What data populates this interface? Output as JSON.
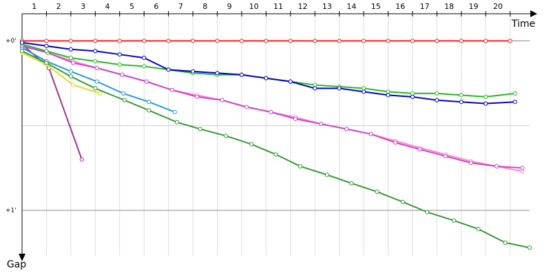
{
  "chart_data": {
    "type": "line",
    "x_label": "Time",
    "y_label": "Gap",
    "xlim": [
      0,
      20.8
    ],
    "xticks": [
      1,
      2,
      3,
      4,
      5,
      6,
      7,
      8,
      9,
      10,
      11,
      12,
      13,
      14,
      15,
      16,
      17,
      18,
      19,
      20
    ],
    "ylim": [
      -0.16,
      1.3
    ],
    "yticks": [
      {
        "value": 0,
        "label": "+0'"
      },
      {
        "value": 1,
        "label": "+1'"
      }
    ],
    "minor_yticks": [
      0.5
    ],
    "grid": true,
    "series": [
      {
        "color": "#ee2222",
        "x": [
          0,
          1,
          2,
          3,
          4,
          5,
          6,
          7,
          8,
          9,
          10,
          11,
          12,
          13,
          14,
          15,
          16,
          17,
          18,
          19,
          20
        ],
        "values": [
          0,
          0,
          0,
          0,
          0,
          0,
          0,
          0,
          0,
          0,
          0,
          0,
          0,
          0,
          0,
          0,
          0,
          0,
          0,
          0,
          0
        ]
      },
      {
        "color": "#993399",
        "x": [
          0,
          1.1,
          2.45
        ],
        "values": [
          0.02,
          0.16,
          0.7
        ]
      },
      {
        "color": "#dddd22",
        "x": [
          0,
          1,
          2.1,
          3.2
        ],
        "values": [
          0.07,
          0.14,
          0.26,
          0.31
        ]
      },
      {
        "color": "#2299dd",
        "x": [
          0,
          1,
          2,
          3.07,
          4.15,
          5.2,
          6.26
        ],
        "values": [
          0.04,
          0.12,
          0.18,
          0.24,
          0.31,
          0.36,
          0.42
        ]
      },
      {
        "color": "#339933",
        "x": [
          0,
          1,
          2,
          3,
          4.2,
          5.2,
          6.35,
          7.3,
          8.35,
          9.4,
          10.4,
          11.4,
          12.5,
          13.5,
          14.55,
          15.6,
          16.6,
          17.7,
          18.7,
          19.8,
          20.8
        ],
        "values": [
          0.06,
          0.13,
          0.21,
          0.28,
          0.35,
          0.41,
          0.48,
          0.52,
          0.56,
          0.61,
          0.67,
          0.74,
          0.79,
          0.84,
          0.89,
          0.95,
          1.01,
          1.06,
          1.11,
          1.19,
          1.22
        ]
      },
      {
        "color": "#ff88cc",
        "x": [
          0,
          1.05,
          2.1,
          3.07,
          4.1,
          5.1,
          6.15,
          7.17,
          8.2,
          9.2,
          10.2,
          11.2,
          12.25,
          13.3,
          14.3,
          15.3,
          16.3,
          17.35,
          18.4,
          19.45,
          20.5
        ],
        "values": [
          0.03,
          0.07,
          0.12,
          0.16,
          0.2,
          0.24,
          0.29,
          0.32,
          0.35,
          0.39,
          0.42,
          0.45,
          0.49,
          0.52,
          0.55,
          0.59,
          0.63,
          0.67,
          0.71,
          0.74,
          0.77
        ]
      },
      {
        "color": "#cc44cc",
        "x": [
          0,
          1.05,
          2.1,
          3.07,
          4.1,
          5.1,
          6.15,
          7.17,
          8.2,
          9.2,
          10.2,
          11.2,
          12.25,
          13.3,
          14.3,
          15.3,
          16.3,
          17.35,
          18.4,
          19.45,
          20.5
        ],
        "values": [
          0.03,
          0.07,
          0.13,
          0.16,
          0.2,
          0.24,
          0.29,
          0.33,
          0.35,
          0.39,
          0.42,
          0.46,
          0.49,
          0.52,
          0.55,
          0.6,
          0.64,
          0.68,
          0.72,
          0.74,
          0.75
        ]
      },
      {
        "color": "#22bb22",
        "x": [
          0,
          1,
          2,
          3,
          4,
          5,
          6,
          7,
          8,
          9,
          10,
          11,
          12,
          13,
          14,
          15,
          16,
          17,
          18,
          19,
          20.2
        ],
        "values": [
          0.02,
          0.06,
          0.1,
          0.12,
          0.14,
          0.15,
          0.17,
          0.19,
          0.2,
          0.2,
          0.22,
          0.24,
          0.26,
          0.27,
          0.28,
          0.3,
          0.31,
          0.31,
          0.32,
          0.33,
          0.31
        ]
      },
      {
        "color": "#0000cc",
        "x": [
          0,
          1,
          2,
          3,
          4,
          5,
          6,
          7,
          8,
          9,
          10,
          11,
          12,
          13,
          14,
          15,
          16,
          17,
          18,
          19,
          20.2
        ],
        "values": [
          0.01,
          0.03,
          0.05,
          0.06,
          0.08,
          0.1,
          0.17,
          0.18,
          0.19,
          0.2,
          0.22,
          0.24,
          0.28,
          0.28,
          0.3,
          0.32,
          0.33,
          0.35,
          0.36,
          0.37,
          0.36
        ]
      }
    ]
  }
}
